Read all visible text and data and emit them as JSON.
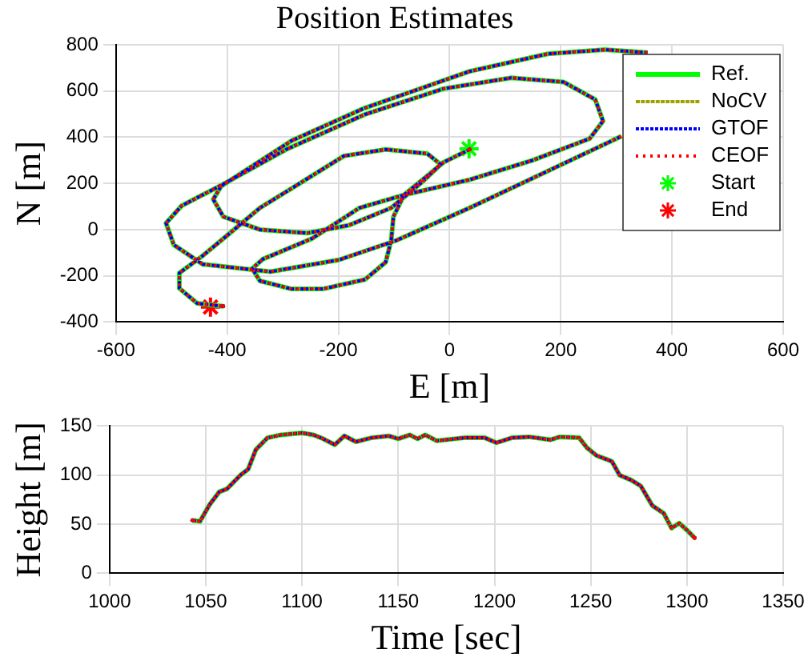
{
  "chart_data": [
    {
      "type": "line",
      "title": "Position Estimates",
      "xlabel": "E [m]",
      "ylabel": "N [m]",
      "xlim": [
        -600,
        600
      ],
      "xticks": [
        -600,
        -400,
        -200,
        0,
        200,
        400,
        600
      ],
      "ylim": [
        -400,
        800
      ],
      "yticks": [
        -400,
        -200,
        0,
        200,
        400,
        600,
        800
      ],
      "grid": true,
      "legend": "top right",
      "marker": "none",
      "series": [
        {
          "name": "Ref.",
          "color": "#00ff00",
          "line_style": "solid",
          "x": [
            36,
            -11,
            -44,
            -82,
            -101,
            -105,
            -115,
            -152,
            -228,
            -284,
            -341,
            -355,
            -336,
            -247,
            -162,
            -82,
            36,
            149,
            252,
            276,
            262,
            205,
            111,
            -11,
            -153,
            -294,
            -407,
            -482,
            -510,
            -496,
            -444,
            -322,
            -199,
            -96,
            36,
            177,
            309,
            null,
            356,
            280,
            177,
            36,
            -153,
            -284,
            -411,
            -425,
            -407,
            -341,
            -256,
            -181,
            -105,
            -49,
            -16,
            -40,
            -115,
            -190,
            -265,
            -341,
            -397,
            -444,
            -486,
            -486,
            -454,
            -407
          ],
          "values": [
            347,
            291,
            225,
            150,
            56,
            -47,
            -141,
            -216,
            -257,
            -257,
            -222,
            -169,
            -128,
            -38,
            94,
            150,
            216,
            300,
            394,
            470,
            563,
            639,
            657,
            610,
            498,
            347,
            197,
            103,
            28,
            -66,
            -150,
            -182,
            -131,
            -47,
            94,
            254,
            404,
            null,
            766,
            779,
            761,
            685,
            526,
            385,
            188,
            131,
            56,
            0,
            -15,
            19,
            94,
            207,
            282,
            329,
            347,
            319,
            207,
            94,
            -19,
            -113,
            -188,
            -254,
            -319,
            -332
          ]
        },
        {
          "name": "NoCV",
          "color": "#a0a000",
          "line_style": "dotted",
          "x": [
            36,
            -11,
            -44,
            -82,
            -101,
            -105,
            -115,
            -152,
            -228,
            -284,
            -341,
            -355,
            -336,
            -247,
            -162,
            -82,
            36,
            149,
            252,
            276,
            262,
            205,
            111,
            -11,
            -153,
            -294,
            -407,
            -482,
            -510,
            -496,
            -444,
            -322,
            -199,
            -96,
            36,
            177,
            309,
            null,
            356,
            280,
            177,
            36,
            -153,
            -284,
            -411,
            -425,
            -407,
            -341,
            -256,
            -181,
            -105,
            -49,
            -16,
            -40,
            -115,
            -190,
            -265,
            -341,
            -397,
            -444,
            -486,
            -486,
            -454,
            -407
          ],
          "values": [
            347,
            291,
            225,
            150,
            56,
            -47,
            -141,
            -216,
            -257,
            -257,
            -222,
            -169,
            -128,
            -38,
            94,
            150,
            216,
            300,
            394,
            470,
            563,
            639,
            657,
            610,
            498,
            347,
            197,
            103,
            28,
            -66,
            -150,
            -182,
            -131,
            -47,
            94,
            254,
            404,
            null,
            766,
            779,
            761,
            685,
            526,
            385,
            188,
            131,
            56,
            0,
            -15,
            19,
            94,
            207,
            282,
            329,
            347,
            319,
            207,
            94,
            -19,
            -113,
            -188,
            -254,
            -319,
            -332
          ]
        },
        {
          "name": "GTOF",
          "color": "#0000ff",
          "line_style": "dotted",
          "x": [
            36,
            -11,
            -44,
            -82,
            -101,
            -105,
            -115,
            -152,
            -228,
            -284,
            -341,
            -355,
            -336,
            -247,
            -162,
            -82,
            36,
            149,
            252,
            276,
            262,
            205,
            111,
            -11,
            -153,
            -294,
            -407,
            -482,
            -510,
            -496,
            -444,
            -322,
            -199,
            -96,
            36,
            177,
            309,
            null,
            356,
            280,
            177,
            36,
            -153,
            -284,
            -411,
            -425,
            -407,
            -341,
            -256,
            -181,
            -105,
            -49,
            -16,
            -40,
            -115,
            -190,
            -265,
            -341,
            -397,
            -444,
            -486,
            -486,
            -454,
            -407
          ],
          "values": [
            347,
            291,
            225,
            150,
            56,
            -47,
            -141,
            -216,
            -257,
            -257,
            -222,
            -169,
            -128,
            -38,
            94,
            150,
            216,
            300,
            394,
            470,
            563,
            639,
            657,
            610,
            498,
            347,
            197,
            103,
            28,
            -66,
            -150,
            -182,
            -131,
            -47,
            94,
            254,
            404,
            null,
            766,
            779,
            761,
            685,
            526,
            385,
            188,
            131,
            56,
            0,
            -15,
            19,
            94,
            207,
            282,
            329,
            347,
            319,
            207,
            94,
            -19,
            -113,
            -188,
            -254,
            -319,
            -332
          ]
        },
        {
          "name": "CEOF",
          "color": "#ff0000",
          "line_style": "dotted",
          "x": [
            36,
            -11,
            -44,
            -82,
            -101,
            -105,
            -115,
            -152,
            -228,
            -284,
            -341,
            -355,
            -336,
            -247,
            -162,
            -82,
            36,
            149,
            252,
            276,
            262,
            205,
            111,
            -11,
            -153,
            -294,
            -407,
            -482,
            -510,
            -496,
            -444,
            -322,
            -199,
            -96,
            36,
            177,
            309,
            null,
            356,
            280,
            177,
            36,
            -153,
            -284,
            -411,
            -425,
            -407,
            -341,
            -256,
            -181,
            -105,
            -49,
            -16,
            -40,
            -115,
            -190,
            -265,
            -341,
            -397,
            -444,
            -486,
            -486,
            -454,
            -407
          ],
          "values": [
            347,
            291,
            225,
            150,
            56,
            -47,
            -141,
            -216,
            -257,
            -257,
            -222,
            -169,
            -128,
            -38,
            94,
            150,
            216,
            300,
            394,
            470,
            563,
            639,
            657,
            610,
            498,
            347,
            197,
            103,
            28,
            -66,
            -150,
            -182,
            -131,
            -47,
            94,
            254,
            404,
            null,
            766,
            779,
            761,
            685,
            526,
            385,
            188,
            131,
            56,
            0,
            -15,
            19,
            94,
            207,
            282,
            329,
            347,
            319,
            207,
            94,
            -19,
            -113,
            -188,
            -254,
            -319,
            -332
          ]
        },
        {
          "name": "Start",
          "type": "scatter",
          "marker": "cross",
          "color": "#00ff00",
          "x": [
            35
          ],
          "values": [
            350
          ]
        },
        {
          "name": "End",
          "type": "scatter",
          "marker": "cross",
          "color": "#ff0000",
          "x": [
            -430
          ],
          "values": [
            -335
          ]
        }
      ]
    },
    {
      "type": "line",
      "xlabel": "Time [sec]",
      "ylabel": "Height [m]",
      "xlim": [
        1000,
        1350
      ],
      "xticks": [
        1000,
        1050,
        1100,
        1150,
        1200,
        1250,
        1300,
        1350
      ],
      "ylim": [
        0,
        150
      ],
      "yticks": [
        0,
        50,
        100,
        150
      ],
      "grid": true,
      "marker": "none",
      "x": [
        1043,
        1047,
        1052,
        1057,
        1061,
        1068,
        1072,
        1076,
        1082,
        1089,
        1100,
        1106,
        1111,
        1117,
        1122,
        1128,
        1136,
        1145,
        1150,
        1156,
        1160,
        1164,
        1170,
        1184,
        1195,
        1201,
        1209,
        1218,
        1229,
        1234,
        1244,
        1248,
        1253,
        1257,
        1261,
        1265,
        1271,
        1276,
        1282,
        1288,
        1292,
        1296,
        1300,
        1304
      ],
      "series": [
        {
          "color": "#00ff00",
          "line_style": "solid",
          "values": [
            54,
            53,
            70,
            83,
            86,
            100,
            106,
            126,
            138,
            141,
            143,
            141,
            137,
            131,
            140,
            134,
            138,
            140,
            137,
            141,
            137,
            141,
            135,
            138,
            138,
            133,
            138,
            139,
            136,
            139,
            138,
            128,
            120,
            117,
            114,
            100,
            95,
            89,
            69,
            61,
            46,
            51,
            44,
            36
          ]
        },
        {
          "color": "#0000ff",
          "line_style": "dotted",
          "values": [
            54,
            53,
            70,
            83,
            86,
            100,
            106,
            126,
            138,
            141,
            143,
            141,
            137,
            131,
            140,
            134,
            138,
            140,
            137,
            141,
            137,
            141,
            135,
            138,
            138,
            133,
            138,
            139,
            136,
            139,
            138,
            128,
            120,
            117,
            114,
            100,
            95,
            89,
            69,
            61,
            46,
            51,
            44,
            36
          ]
        },
        {
          "color": "#ff0000",
          "line_style": "dotted",
          "values": [
            54,
            53,
            70,
            83,
            86,
            100,
            106,
            126,
            138,
            141,
            143,
            141,
            137,
            131,
            140,
            134,
            138,
            140,
            137,
            141,
            137,
            141,
            135,
            138,
            138,
            133,
            138,
            139,
            136,
            139,
            138,
            128,
            120,
            117,
            114,
            100,
            95,
            89,
            69,
            61,
            46,
            51,
            44,
            36
          ]
        }
      ]
    }
  ]
}
